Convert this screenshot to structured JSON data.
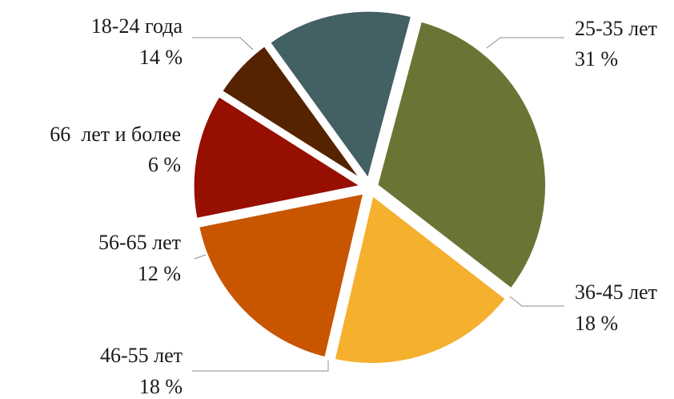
{
  "chart_data": {
    "type": "pie",
    "title": "",
    "slices": [
      {
        "label": "25-35 лет",
        "value": 31,
        "value_label": "31 %",
        "color": "#6b7434"
      },
      {
        "label": "36-45 лет",
        "value": 18,
        "value_label": "18 %",
        "color": "#f5b02e"
      },
      {
        "label": "46-55 лет",
        "value": 18,
        "value_label": "18 %",
        "color": "#c85500"
      },
      {
        "label": "56-65 лет",
        "value": 12,
        "value_label": "12 %",
        "color": "#960f00"
      },
      {
        "label": "66  лет и более",
        "value": 6,
        "value_label": "6 %",
        "color": "#552300"
      },
      {
        "label": "18-24 года",
        "value": 14,
        "value_label": "14 %",
        "color": "#436064"
      }
    ],
    "exploded": true,
    "legend": "none",
    "data_labels": "outside with leader lines"
  }
}
